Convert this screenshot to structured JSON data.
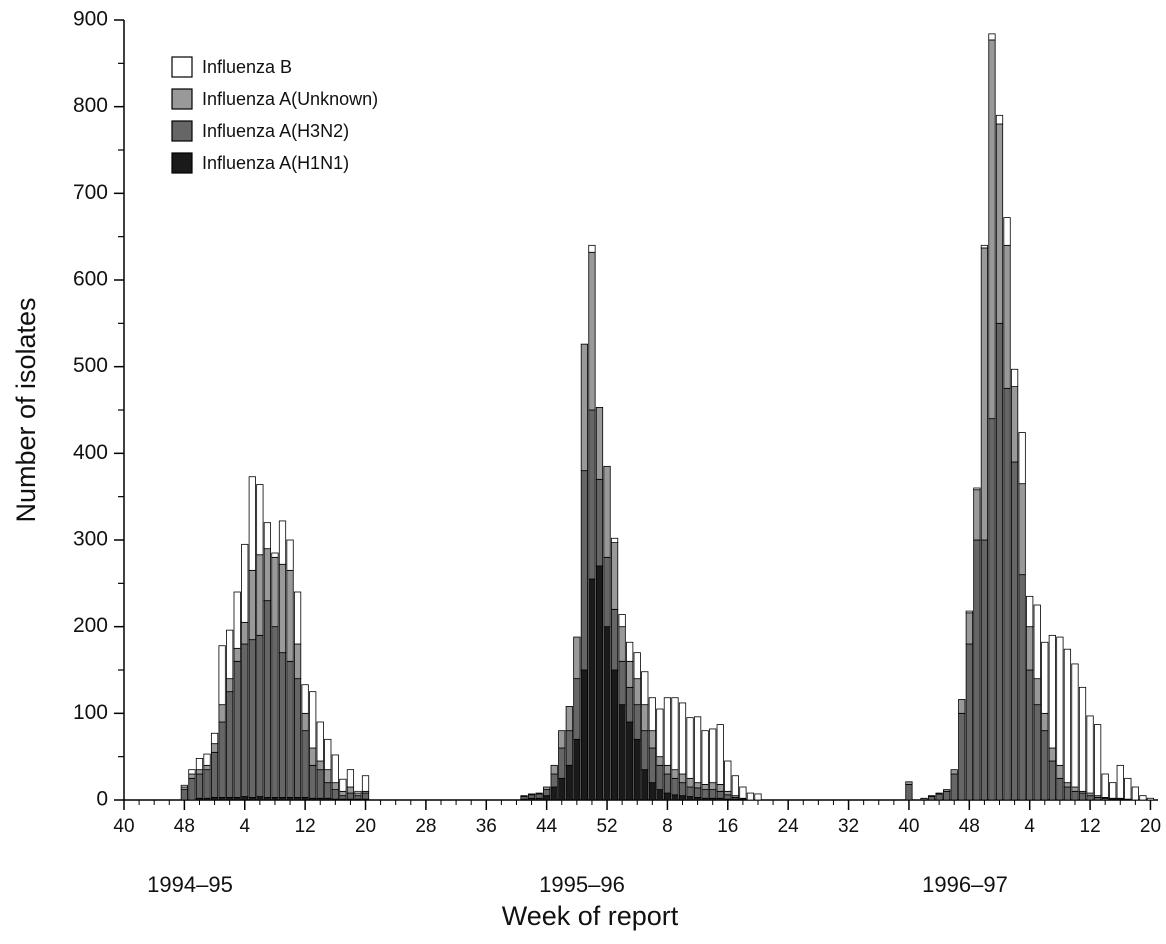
{
  "chart_data": {
    "type": "stacked-bar",
    "x_label": "Week of report",
    "y_label": "Number of isolates",
    "annotations": [
      "1994–95",
      "1995–96",
      "1996–97"
    ],
    "x": [
      8,
      9,
      10,
      11,
      12,
      13,
      14,
      15,
      16,
      17,
      18,
      19,
      20,
      21,
      22,
      23,
      24,
      25,
      26,
      27,
      28,
      29,
      30,
      31,
      32,
      53,
      54,
      55,
      56,
      57,
      58,
      59,
      60,
      61,
      62,
      63,
      64,
      65,
      66,
      67,
      68,
      69,
      70,
      71,
      72,
      73,
      74,
      75,
      76,
      77,
      78,
      79,
      80,
      81,
      82,
      83,
      84,
      104,
      106,
      107,
      108,
      109,
      110,
      111,
      112,
      113,
      114,
      115,
      116,
      117,
      118,
      119,
      120,
      121,
      122,
      123,
      124,
      125,
      126,
      127,
      128,
      129,
      130,
      131,
      132,
      133,
      134,
      135,
      136
    ],
    "series": [
      {
        "name": "Influenza A(H1N1)",
        "color": "#1a1a1a",
        "values": [
          0,
          0,
          2,
          2,
          3,
          3,
          3,
          3,
          4,
          3,
          4,
          3,
          3,
          3,
          3,
          3,
          3,
          2,
          2,
          2,
          1,
          1,
          1,
          1,
          1,
          1,
          2,
          2,
          5,
          15,
          25,
          40,
          70,
          150,
          255,
          270,
          200,
          150,
          110,
          90,
          70,
          35,
          20,
          12,
          8,
          6,
          5,
          4,
          3,
          2,
          2,
          2,
          1,
          1,
          0,
          0,
          0,
          0,
          0,
          0,
          0,
          0,
          0,
          0,
          0,
          0,
          0,
          0,
          0,
          0,
          0,
          0,
          0,
          0,
          0,
          0,
          0,
          0,
          0,
          0,
          0,
          0,
          0,
          0,
          0,
          0,
          0,
          0,
          0
        ]
      },
      {
        "name": "Influenza A(H3N2)",
        "color": "#666666",
        "values": [
          12,
          25,
          28,
          33,
          52,
          87,
          122,
          157,
          176,
          182,
          186,
          227,
          197,
          167,
          157,
          137,
          77,
          38,
          33,
          18,
          11,
          4,
          7,
          4,
          7,
          3,
          4,
          5,
          7,
          15,
          35,
          40,
          70,
          230,
          195,
          100,
          80,
          70,
          50,
          40,
          40,
          45,
          40,
          28,
          22,
          19,
          15,
          11,
          11,
          10,
          10,
          8,
          5,
          2,
          1,
          0,
          0,
          18,
          2,
          4,
          7,
          10,
          30,
          100,
          180,
          300,
          300,
          440,
          550,
          475,
          390,
          260,
          150,
          110,
          80,
          45,
          25,
          15,
          10,
          8,
          5,
          3,
          2,
          1,
          1,
          1,
          0,
          0,
          0
        ]
      },
      {
        "name": "Influenza A(Unknown)",
        "color": "#999999",
        "values": [
          3,
          5,
          5,
          5,
          10,
          20,
          15,
          15,
          25,
          80,
          93,
          60,
          80,
          102,
          105,
          40,
          20,
          20,
          10,
          15,
          8,
          5,
          7,
          3,
          2,
          1,
          1,
          1,
          3,
          10,
          20,
          28,
          48,
          146,
          182,
          83,
          105,
          77,
          40,
          30,
          30,
          30,
          20,
          10,
          10,
          10,
          10,
          10,
          6,
          6,
          8,
          8,
          4,
          2,
          1,
          0,
          0,
          3,
          0,
          1,
          1,
          2,
          5,
          16,
          36,
          58,
          337,
          437,
          230,
          165,
          87,
          105,
          50,
          30,
          20,
          15,
          15,
          5,
          5,
          2,
          3,
          2,
          1,
          1,
          1,
          0,
          0,
          0,
          0
        ]
      },
      {
        "name": "Influenza B",
        "color": "#ffffff",
        "values": [
          2,
          5,
          13,
          13,
          12,
          68,
          56,
          65,
          90,
          108,
          81,
          30,
          5,
          50,
          35,
          60,
          33,
          65,
          45,
          35,
          32,
          14,
          20,
          2,
          18,
          0,
          0,
          0,
          0,
          0,
          0,
          0,
          0,
          0,
          8,
          0,
          0,
          5,
          14,
          22,
          30,
          38,
          38,
          55,
          78,
          83,
          82,
          70,
          76,
          62,
          62,
          69,
          35,
          23,
          13,
          8,
          7,
          0,
          0,
          0,
          0,
          0,
          0,
          0,
          2,
          2,
          3,
          7,
          10,
          32,
          20,
          59,
          35,
          85,
          82,
          130,
          148,
          154,
          142,
          120,
          89,
          82,
          27,
          18,
          38,
          24,
          15,
          5,
          2
        ]
      }
    ],
    "xlim": [
      0,
      137
    ],
    "xticks": [
      {
        "value": 0,
        "label": "40"
      },
      {
        "value": 8,
        "label": "48"
      },
      {
        "value": 16,
        "label": "4"
      },
      {
        "value": 24,
        "label": "12"
      },
      {
        "value": 32,
        "label": "20"
      },
      {
        "value": 40,
        "label": "28"
      },
      {
        "value": 48,
        "label": "36"
      },
      {
        "value": 56,
        "label": "44"
      },
      {
        "value": 64,
        "label": "52"
      },
      {
        "value": 72,
        "label": "8"
      },
      {
        "value": 80,
        "label": "16"
      },
      {
        "value": 88,
        "label": "24"
      },
      {
        "value": 96,
        "label": "32"
      },
      {
        "value": 104,
        "label": "40"
      },
      {
        "value": 112,
        "label": "48"
      },
      {
        "value": 120,
        "label": "4"
      },
      {
        "value": 128,
        "label": "12"
      },
      {
        "value": 136,
        "label": "20"
      }
    ],
    "ylim": [
      0,
      900
    ],
    "yticks": [
      0,
      100,
      200,
      300,
      400,
      500,
      600,
      700,
      800,
      900
    ],
    "legend": "upper left"
  }
}
